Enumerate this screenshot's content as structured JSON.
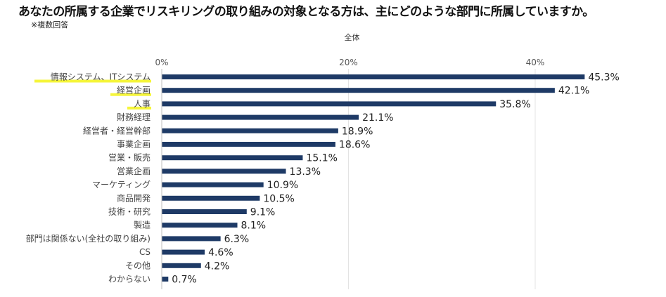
{
  "title": "あなたの所属する企業でリスキリングの取り組みの対象となる方は、主にどのような部門に所属していますか。",
  "note": "※複数回答",
  "highlight_color": "#f5f53a",
  "bar_color": "#1e3a66",
  "chart_data": {
    "type": "bar",
    "orientation": "horizontal",
    "series": [
      {
        "name": "全体",
        "values": [
          45.3,
          42.1,
          35.8,
          21.1,
          18.9,
          18.6,
          15.1,
          13.3,
          10.9,
          10.5,
          9.1,
          8.1,
          6.3,
          4.6,
          4.2,
          0.7
        ]
      }
    ],
    "categories": [
      "情報システム、ITシステム",
      "経営企画",
      "人事",
      "財務経理",
      "経営者・経営幹部",
      "事業企画",
      "営業・販売",
      "営業企画",
      "マーケティング",
      "商品開発",
      "技術・研究",
      "製造",
      "部門は関係ない(全社の取り組み)",
      "CS",
      "その他",
      "わからない"
    ],
    "value_labels": [
      "45.3%",
      "42.1%",
      "35.8%",
      "21.1%",
      "18.9%",
      "18.6%",
      "15.1%",
      "13.3%",
      "10.9%",
      "10.5%",
      "9.1%",
      "8.1%",
      "6.3%",
      "4.6%",
      "4.2%",
      "0.7%"
    ],
    "highlighted_categories": [
      "情報システム、ITシステム",
      "経営企画",
      "人事"
    ],
    "xlim": [
      0,
      40
    ],
    "xticks": [
      0,
      20,
      40
    ],
    "xtick_labels": [
      "0%",
      "20%",
      "40%"
    ],
    "grid": true
  }
}
